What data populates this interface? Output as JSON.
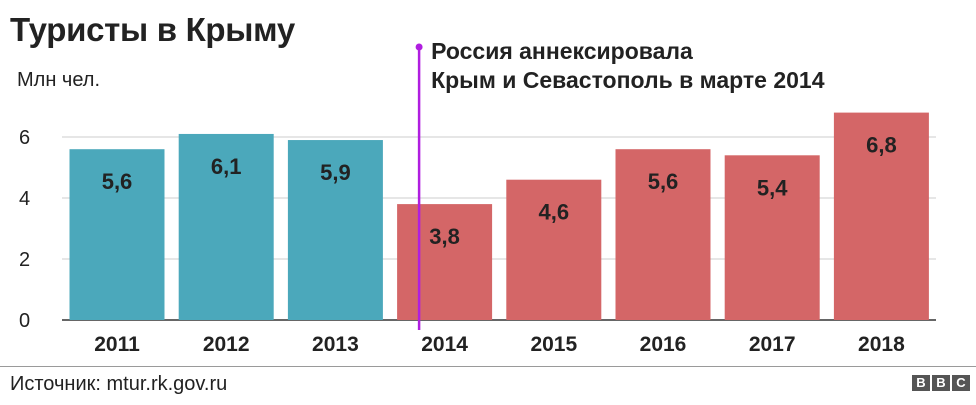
{
  "title": "Туристы в Крыму",
  "source": "Источник: mtur.rk.gov.ru",
  "logo": {
    "letters": [
      "B",
      "B",
      "C"
    ]
  },
  "colors": {
    "before": "#4ba8bb",
    "after": "#d46667",
    "annotation": "#b01ee0",
    "grid": "#cccccc",
    "text": "#222222"
  },
  "chart_data": {
    "type": "bar",
    "ylabel": "Млн чел.",
    "categories": [
      "2011",
      "2012",
      "2013",
      "2014",
      "2015",
      "2016",
      "2017",
      "2018"
    ],
    "values": [
      5.6,
      6.1,
      5.9,
      3.8,
      4.6,
      5.6,
      5.4,
      6.8
    ],
    "value_labels": [
      "5,6",
      "6,1",
      "5,9",
      "3,8",
      "4,6",
      "5,6",
      "5,4",
      "6,8"
    ],
    "yticks": [
      0,
      2,
      4,
      6
    ],
    "ylim": [
      0,
      7.5
    ],
    "grid": true,
    "annotation": {
      "at_category": "2014",
      "lines": [
        "Россия аннексировала",
        "Крым и Севастополь в марте 2014"
      ]
    }
  }
}
